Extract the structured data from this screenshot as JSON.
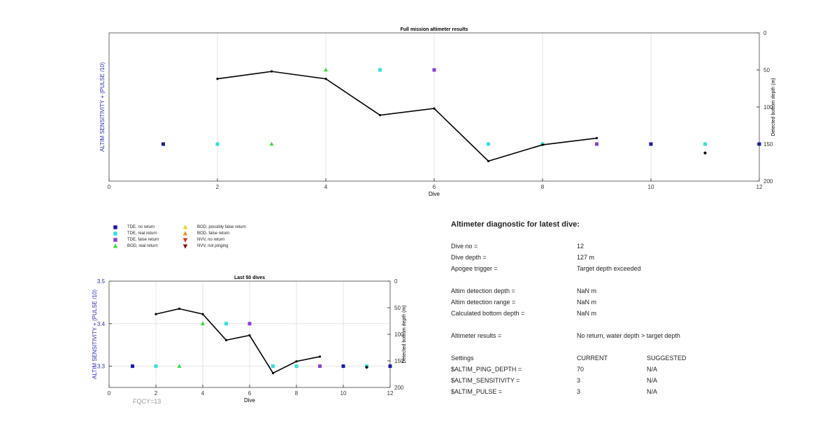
{
  "chart_data": [
    {
      "type": "scatter",
      "title": "Full mission altimeter results",
      "xlabel": "Dive",
      "ylabel": "ALTIM SENSITIVITY + (PULSE /10)",
      "y2label": "Detected bottom depth (m)",
      "xlim": [
        0,
        12
      ],
      "ylim": [
        200,
        0
      ],
      "x_ticks": [
        0,
        2,
        4,
        6,
        8,
        10,
        12
      ],
      "y2_ticks": [
        0,
        50,
        100,
        150,
        200
      ],
      "grid": "vertical",
      "series": [
        {
          "name": "TDE, no return",
          "marker": "square",
          "color": "#1a1aa6",
          "x": [
            1,
            10,
            12
          ],
          "y": [
            150,
            150,
            150
          ]
        },
        {
          "name": "TDE, real return",
          "marker": "square",
          "color": "#33e0e0",
          "x": [
            2,
            5,
            7,
            8,
            11
          ],
          "y": [
            150,
            50,
            150,
            150,
            150
          ]
        },
        {
          "name": "TDE, false return",
          "marker": "square",
          "color": "#8a3fd6",
          "x": [
            6,
            9
          ],
          "y": [
            50,
            150
          ]
        },
        {
          "name": "BOD, real return",
          "marker": "triangle-up",
          "color": "#3ad93a",
          "x": [
            3,
            4
          ],
          "y": [
            150,
            50
          ]
        },
        {
          "name": "Detected bottom depth",
          "marker": "line",
          "color": "#000000",
          "x": [
            2,
            3,
            4,
            5,
            6,
            7,
            8,
            9
          ],
          "y": [
            62,
            52,
            62,
            111,
            102,
            173,
            151,
            142
          ]
        },
        {
          "name": "NVV, not pinging",
          "marker": "diamond",
          "color": "#000000",
          "x": [
            11
          ],
          "y": [
            162
          ]
        }
      ]
    },
    {
      "type": "scatter",
      "title": "Last 50 dives",
      "xlabel": "Dive",
      "ylabel": "ALTIM SENSITIVITY + (PULSE /10)",
      "y2label": "Detected bottom depth (m)",
      "xlim": [
        0,
        12
      ],
      "ylim": [
        3.25,
        3.5
      ],
      "y2lim": [
        200,
        0
      ],
      "x_ticks": [
        0,
        2,
        4,
        6,
        8,
        10,
        12
      ],
      "y_ticks": [
        3.3,
        3.4,
        3.5
      ],
      "y2_ticks": [
        0,
        50,
        100,
        150,
        200
      ],
      "grid": "both",
      "series": [
        {
          "name": "TDE, no return",
          "marker": "square",
          "color": "#1a1aa6",
          "x": [
            1,
            10,
            12
          ],
          "y": [
            3.3,
            3.3,
            3.3
          ]
        },
        {
          "name": "TDE, real return",
          "marker": "square",
          "color": "#33e0e0",
          "x": [
            2,
            5,
            7,
            8,
            11
          ],
          "y": [
            3.3,
            3.4,
            3.3,
            3.3,
            3.3
          ]
        },
        {
          "name": "TDE, false return",
          "marker": "square",
          "color": "#8a3fd6",
          "x": [
            6,
            9
          ],
          "y": [
            3.4,
            3.3
          ]
        },
        {
          "name": "BOD, real return",
          "marker": "triangle-up",
          "color": "#3ad93a",
          "x": [
            3,
            4
          ],
          "y": [
            3.3,
            3.4
          ]
        },
        {
          "name": "Detected bottom depth",
          "marker": "line",
          "color": "#000000",
          "x": [
            2,
            3,
            4,
            5,
            6,
            7,
            8,
            9
          ],
          "y2": [
            62,
            52,
            62,
            111,
            102,
            173,
            151,
            142
          ]
        },
        {
          "name": "NVV, not pinging",
          "marker": "diamond",
          "color": "#000000",
          "x": [
            11
          ],
          "y2": [
            162
          ]
        }
      ]
    }
  ],
  "legend": [
    {
      "label": "TDE, no return",
      "marker": "square",
      "color": "#1a1aa6"
    },
    {
      "label": "TDE, real return",
      "marker": "square",
      "color": "#33e0e0"
    },
    {
      "label": "TDE, false return",
      "marker": "square",
      "color": "#8a3fd6"
    },
    {
      "label": "BOD, real return",
      "marker": "triangle-up",
      "color": "#3ad93a"
    },
    {
      "label": "BOD, possibly false return",
      "marker": "triangle-up",
      "color": "#f0d020"
    },
    {
      "label": "BOD, false return",
      "marker": "triangle-up",
      "color": "#f09020"
    },
    {
      "label": "NVV, no return",
      "marker": "triangle-down",
      "color": "#d03010"
    },
    {
      "label": "NVV, not pinging",
      "marker": "triangle-down",
      "color": "#7a1008"
    }
  ],
  "fqcy": "FQCY=13",
  "diagnostic": {
    "title": "Altimeter diagnostic for latest dive:",
    "rows": [
      {
        "label": "Dive no =",
        "value": "12"
      },
      {
        "label": "Dive depth =",
        "value": "127 m"
      },
      {
        "label": "Apogee trigger =",
        "value": "Target depth exceeded"
      },
      {
        "label": "Altim detection depth =",
        "value": "NaN m"
      },
      {
        "label": "Altim detection range =",
        "value": "NaN m"
      },
      {
        "label": "Calculated bottom depth =",
        "value": "NaN m"
      },
      {
        "label": "Altimeter results =",
        "value": "No return, water depth > target depth"
      }
    ],
    "settings_header": {
      "label": "Settings",
      "current": "CURRENT",
      "suggested": "SUGGESTED"
    },
    "settings": [
      {
        "label": "$ALTIM_PING_DEPTH =",
        "current": "70",
        "suggested": "N/A"
      },
      {
        "label": "$ALTIM_SENSITIVITY =",
        "current": "3",
        "suggested": "N/A"
      },
      {
        "label": "$ALTIM_PULSE =",
        "current": "3",
        "suggested": "N/A"
      }
    ]
  },
  "colors": {
    "axis_label_left": "#2a2ab8",
    "axis": "#333333",
    "grid": "#dddddd"
  }
}
